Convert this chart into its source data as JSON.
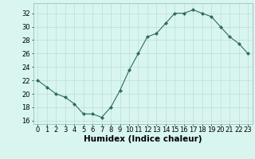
{
  "x": [
    0,
    1,
    2,
    3,
    4,
    5,
    6,
    7,
    8,
    9,
    10,
    11,
    12,
    13,
    14,
    15,
    16,
    17,
    18,
    19,
    20,
    21,
    22,
    23
  ],
  "y": [
    22,
    21,
    20,
    19.5,
    18.5,
    17,
    17,
    16.5,
    18,
    20.5,
    23.5,
    26,
    28.5,
    29,
    30.5,
    32,
    32,
    32.5,
    32,
    31.5,
    30,
    28.5,
    27.5,
    26
  ],
  "line_color": "#2d6b5e",
  "marker": "D",
  "marker_size": 2.0,
  "bg_color": "#d8f5f0",
  "grid_color": "#b8d8d2",
  "xlabel": "Humidex (Indice chaleur)",
  "xlim": [
    -0.5,
    23.5
  ],
  "ylim": [
    15.5,
    33.5
  ],
  "yticks": [
    16,
    18,
    20,
    22,
    24,
    26,
    28,
    30,
    32
  ],
  "xticks": [
    0,
    1,
    2,
    3,
    4,
    5,
    6,
    7,
    8,
    9,
    10,
    11,
    12,
    13,
    14,
    15,
    16,
    17,
    18,
    19,
    20,
    21,
    22,
    23
  ],
  "xlabel_fontsize": 7.5,
  "tick_fontsize": 6.0
}
